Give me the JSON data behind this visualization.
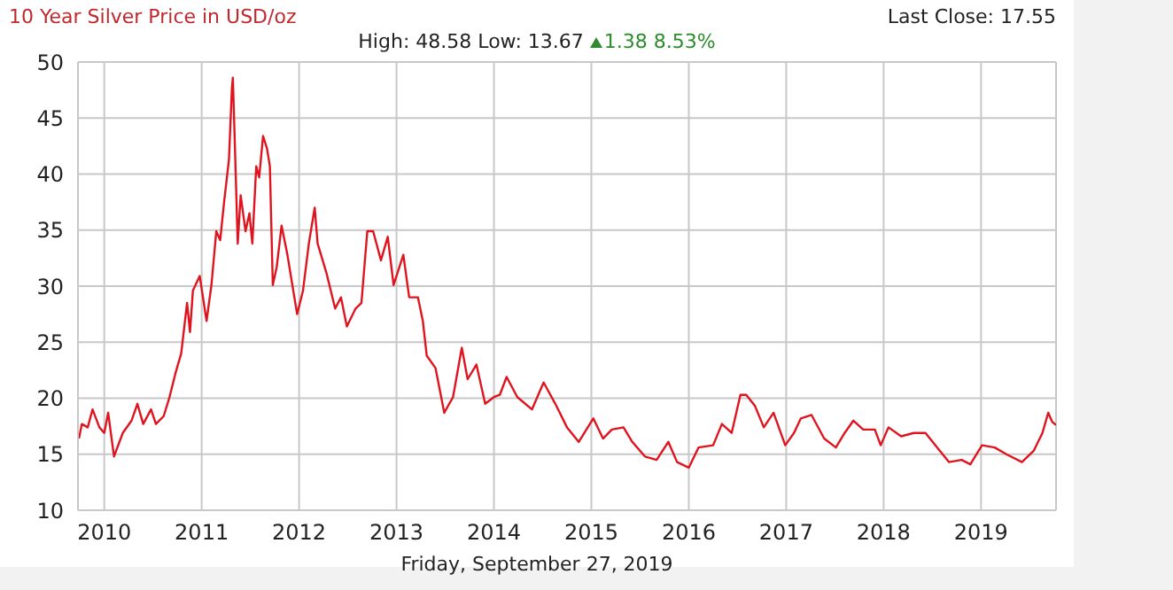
{
  "chart_data": {
    "type": "line",
    "title": "10 Year Silver Price in USD/oz",
    "annotations": [
      "Last Close: 17.55",
      "High: 48.58 Low: 13.67",
      "1.38 8.53%",
      "Friday, September 27, 2019"
    ],
    "x": [
      2009.74,
      2009.77,
      2009.83,
      2009.88,
      2009.95,
      2010.0,
      2010.04,
      2010.08,
      2010.1,
      2010.19,
      2010.28,
      2010.34,
      2010.4,
      2010.48,
      2010.53,
      2010.61,
      2010.67,
      2010.73,
      2010.79,
      2010.85,
      2010.88,
      2010.91,
      2010.98,
      2011.05,
      2011.1,
      2011.15,
      2011.19,
      2011.23,
      2011.28,
      2011.31,
      2011.32,
      2011.34,
      2011.37,
      2011.4,
      2011.45,
      2011.49,
      2011.52,
      2011.56,
      2011.59,
      2011.63,
      2011.67,
      2011.7,
      2011.73,
      2011.77,
      2011.82,
      2011.88,
      2011.94,
      2011.98,
      2012.04,
      2012.1,
      2012.16,
      2012.19,
      2012.28,
      2012.37,
      2012.43,
      2012.49,
      2012.58,
      2012.64,
      2012.7,
      2012.76,
      2012.84,
      2012.91,
      2012.97,
      2013.07,
      2013.13,
      2013.22,
      2013.27,
      2013.31,
      2013.4,
      2013.49,
      2013.58,
      2013.67,
      2013.73,
      2013.82,
      2013.91,
      2014.0,
      2014.06,
      2014.13,
      2014.24,
      2014.39,
      2014.51,
      2014.63,
      2014.75,
      2014.87,
      2015.02,
      2015.12,
      2015.21,
      2015.33,
      2015.42,
      2015.55,
      2015.67,
      2015.79,
      2015.88,
      2016.0,
      2016.1,
      2016.25,
      2016.34,
      2016.44,
      2016.53,
      2016.59,
      2016.68,
      2016.77,
      2016.87,
      2016.99,
      2017.08,
      2017.15,
      2017.26,
      2017.39,
      2017.51,
      2017.6,
      2017.69,
      2017.79,
      2017.91,
      2017.97,
      2018.05,
      2018.18,
      2018.31,
      2018.43,
      2018.55,
      2018.67,
      2018.8,
      2018.89,
      2019.01,
      2019.14,
      2019.26,
      2019.42,
      2019.54,
      2019.63,
      2019.69,
      2019.73,
      2019.77
    ],
    "series": [
      {
        "color": "#e0141e",
        "values": [
          16.4,
          17.7,
          17.4,
          19.0,
          17.4,
          16.9,
          18.7,
          16.1,
          14.8,
          16.9,
          18.0,
          19.5,
          17.7,
          19.0,
          17.7,
          18.4,
          20.1,
          22.2,
          24.0,
          28.5,
          25.9,
          29.6,
          30.9,
          26.9,
          30.1,
          34.9,
          34.1,
          37.5,
          41.3,
          47.6,
          48.6,
          42.8,
          33.8,
          38.1,
          34.9,
          36.5,
          33.8,
          40.7,
          39.7,
          43.4,
          42.3,
          40.7,
          30.1,
          31.7,
          35.4,
          32.8,
          29.6,
          27.5,
          29.6,
          33.8,
          37.0,
          33.8,
          31.2,
          28.0,
          29.0,
          26.4,
          28.0,
          28.5,
          34.9,
          34.9,
          32.3,
          34.4,
          30.1,
          32.8,
          29.0,
          29.0,
          26.9,
          23.8,
          22.7,
          18.7,
          20.1,
          24.5,
          21.7,
          23.0,
          19.5,
          20.1,
          20.3,
          21.9,
          20.1,
          19.0,
          21.4,
          19.5,
          17.4,
          16.1,
          18.2,
          16.4,
          17.2,
          17.4,
          16.1,
          14.8,
          14.5,
          16.1,
          14.3,
          13.8,
          15.6,
          15.8,
          17.7,
          16.9,
          20.3,
          20.3,
          19.3,
          17.4,
          18.7,
          15.8,
          16.9,
          18.2,
          18.5,
          16.4,
          15.6,
          16.9,
          18.0,
          17.2,
          17.2,
          15.8,
          17.4,
          16.6,
          16.9,
          16.9,
          15.6,
          14.3,
          14.5,
          14.1,
          15.8,
          15.6,
          15.0,
          14.3,
          15.3,
          16.9,
          18.7,
          17.9,
          17.6
        ]
      }
    ],
    "xlim": [
      2009.73,
      2019.77
    ],
    "xticks": [
      2010,
      2011,
      2012,
      2013,
      2014,
      2015,
      2016,
      2017,
      2018,
      2019
    ],
    "ylim": [
      10,
      50
    ],
    "yticks": [
      10,
      15,
      20,
      25,
      30,
      35,
      40,
      45,
      50
    ],
    "grid": true,
    "marker": "none",
    "line_style": "solid"
  }
}
